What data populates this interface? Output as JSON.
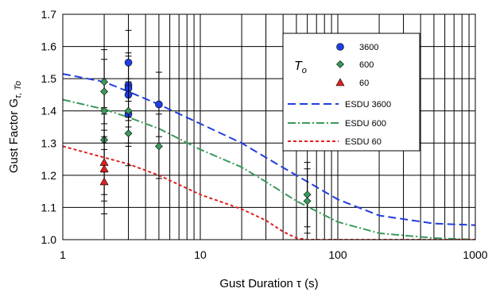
{
  "chart_data": {
    "type": "scatter",
    "xlabel": "Gust Duration  τ (s)",
    "ylabel_main": "Gust Factor  G",
    "ylabel_sub": "τ, To",
    "xscale": "log",
    "xlim": [
      1,
      1000
    ],
    "ylim": [
      1.0,
      1.7
    ],
    "grid": true,
    "x_ticks": [
      1,
      10,
      100,
      1000
    ],
    "x_tick_labels": [
      "1",
      "10",
      "100",
      "1000"
    ],
    "y_ticks": [
      1.0,
      1.1,
      1.2,
      1.3,
      1.4,
      1.5,
      1.6,
      1.7
    ],
    "y_tick_labels": [
      "1.0",
      "1.1",
      "1.2",
      "1.3",
      "1.4",
      "1.5",
      "1.6",
      "1.7"
    ],
    "legend": {
      "placement": "top-right",
      "symbol_title_main": "T",
      "symbol_title_sub": "o"
    },
    "series": [
      {
        "name": "3600",
        "kind": "points",
        "marker": "circle",
        "color": "#1f3ee0",
        "points": [
          {
            "x": 3,
            "y": 1.55,
            "err": 0.1
          },
          {
            "x": 3,
            "y": 1.48,
            "err": 0.1
          },
          {
            "x": 3,
            "y": 1.47,
            "err": 0.1
          },
          {
            "x": 3,
            "y": 1.45,
            "err": 0.1
          },
          {
            "x": 3,
            "y": 1.39,
            "err": 0.1
          },
          {
            "x": 5,
            "y": 1.42,
            "err": 0.1
          }
        ]
      },
      {
        "name": "600",
        "kind": "points",
        "marker": "diamond",
        "color": "#3a9a5b",
        "points": [
          {
            "x": 2,
            "y": 1.49,
            "err": 0.1
          },
          {
            "x": 2,
            "y": 1.46,
            "err": 0.1
          },
          {
            "x": 2,
            "y": 1.4,
            "err": 0.1
          },
          {
            "x": 2,
            "y": 1.31,
            "err": 0.1
          },
          {
            "x": 3,
            "y": 1.4,
            "err": 0.1
          },
          {
            "x": 3,
            "y": 1.33,
            "err": 0.1
          },
          {
            "x": 5,
            "y": 1.29,
            "err": 0.1
          },
          {
            "x": 60,
            "y": 1.14,
            "err": 0.1
          },
          {
            "x": 60,
            "y": 1.12,
            "err": 0.1
          }
        ]
      },
      {
        "name": "60",
        "kind": "points",
        "marker": "triangle",
        "color": "#e02020",
        "points": [
          {
            "x": 2,
            "y": 1.24,
            "err": 0.1
          },
          {
            "x": 2,
            "y": 1.22,
            "err": 0.1
          },
          {
            "x": 2,
            "y": 1.18,
            "err": 0.1
          }
        ]
      },
      {
        "name": "ESDU 3600",
        "kind": "line",
        "dash": "10,5",
        "color": "#1f3ee0",
        "x": [
          1,
          2,
          3,
          5,
          10,
          20,
          30,
          50,
          100,
          200,
          500,
          1000
        ],
        "y": [
          1.515,
          1.49,
          1.46,
          1.42,
          1.36,
          1.3,
          1.255,
          1.2,
          1.125,
          1.075,
          1.05,
          1.045
        ]
      },
      {
        "name": "ESDU 600",
        "kind": "line",
        "dash": "10,3,2,3",
        "color": "#3a9a5b",
        "x": [
          1,
          2,
          3,
          5,
          10,
          20,
          30,
          50,
          100,
          200,
          500,
          1000
        ],
        "y": [
          1.435,
          1.405,
          1.38,
          1.345,
          1.28,
          1.225,
          1.18,
          1.12,
          1.055,
          1.02,
          1.005,
          1.0
        ]
      },
      {
        "name": "ESDU 60",
        "kind": "line",
        "dash": "4,3",
        "color": "#e02020",
        "x": [
          1,
          2,
          3,
          5,
          10,
          20,
          30,
          40,
          50,
          60,
          100,
          1000
        ],
        "y": [
          1.29,
          1.255,
          1.235,
          1.2,
          1.14,
          1.095,
          1.06,
          1.025,
          1.005,
          1.0,
          1.0,
          1.0
        ]
      }
    ]
  }
}
